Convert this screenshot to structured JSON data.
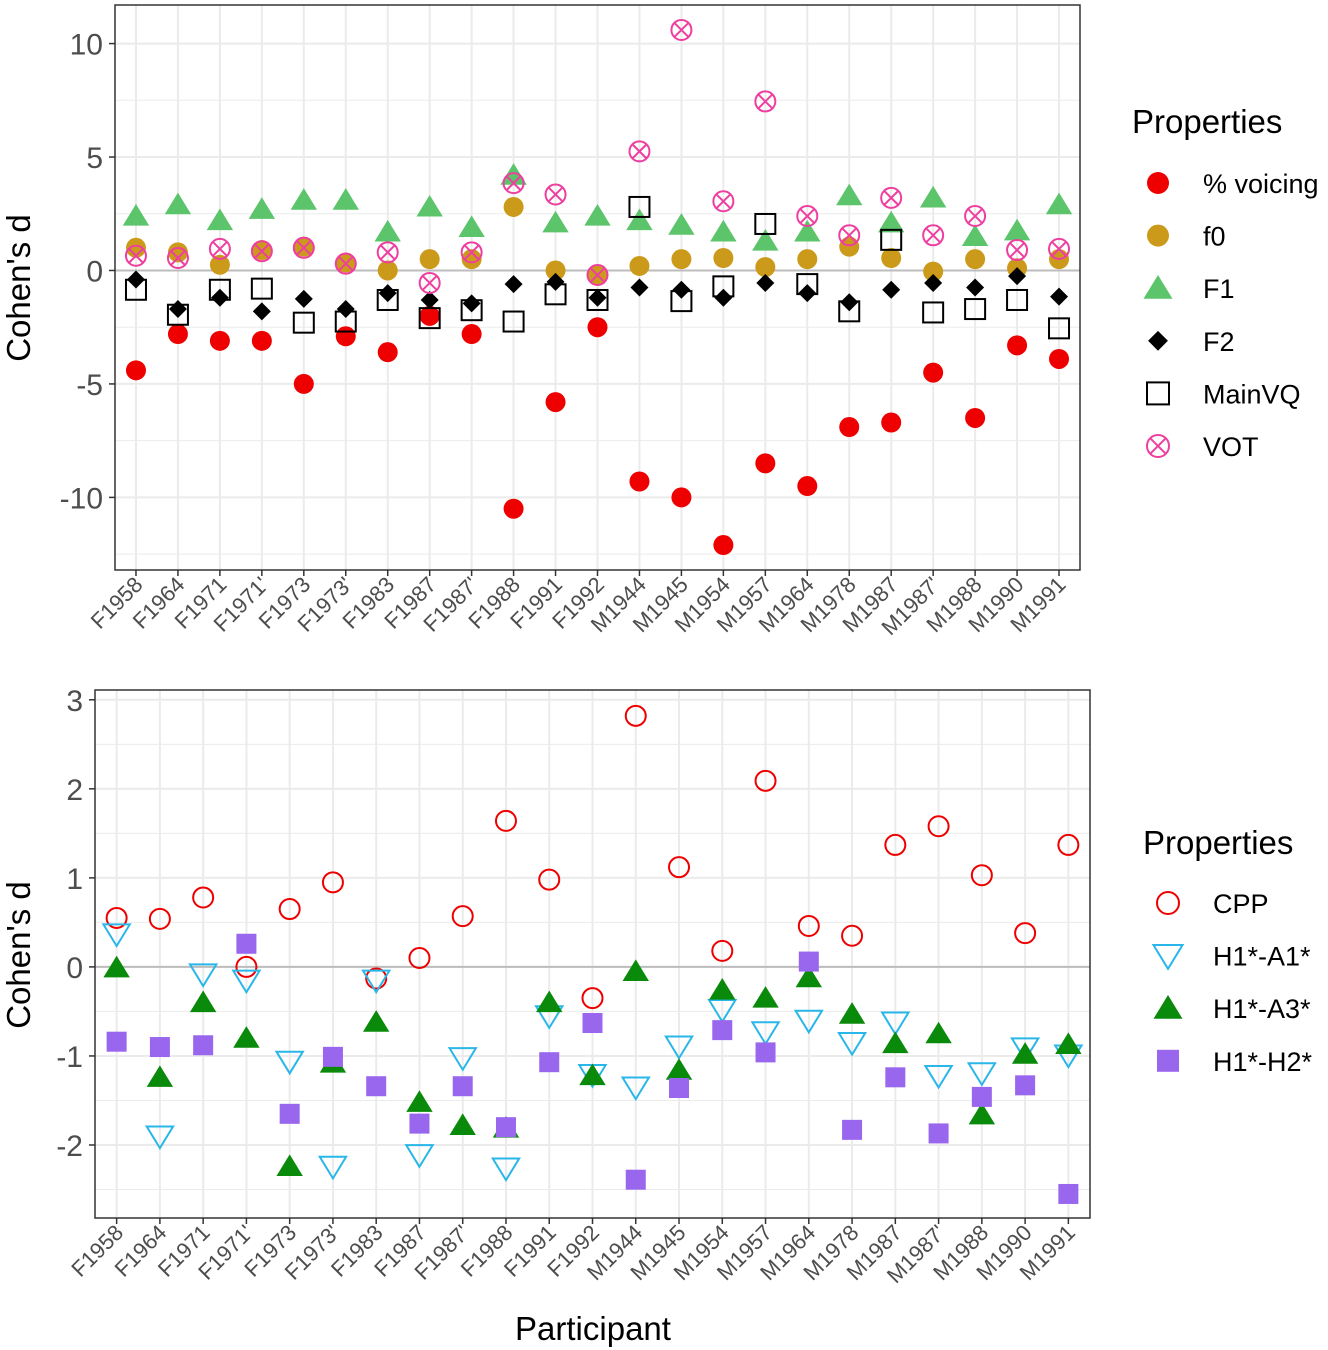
{
  "chart_data": [
    {
      "type": "scatter",
      "xlabel": "",
      "ylabel": "Cohen's d",
      "ylim": [
        -13.2,
        11.7
      ],
      "yticks": [
        -10,
        -5,
        0,
        5,
        10
      ],
      "grid": true,
      "reference_line": 0,
      "legend": {
        "title": "Properties",
        "placement": "right"
      },
      "categories": [
        "F1958",
        "F1964",
        "F1971",
        "F1971'",
        "F1973",
        "F1973'",
        "F1983",
        "F1987",
        "F1987'",
        "F1988",
        "F1991",
        "F1992",
        "M1944",
        "M1945",
        "M1954",
        "M1957",
        "M1964",
        "M1978",
        "M1987",
        "M1987'",
        "M1988",
        "M1990",
        "M1991"
      ],
      "series": [
        {
          "name": "% voicing",
          "marker": "filled-circle",
          "color": "#ee0000",
          "values": [
            -4.4,
            -2.8,
            -3.1,
            -3.1,
            -5.0,
            -2.9,
            -3.6,
            -2.0,
            -2.8,
            -10.5,
            -5.8,
            -2.5,
            -9.3,
            -10.0,
            -12.1,
            -8.5,
            -9.5,
            -6.9,
            -6.7,
            -4.5,
            -6.5,
            -3.3,
            -3.9
          ]
        },
        {
          "name": "f0",
          "marker": "filled-circle",
          "color": "#cc9a1a",
          "values": [
            1.0,
            0.8,
            0.25,
            0.9,
            1.05,
            0.35,
            0.0,
            0.5,
            0.5,
            2.8,
            0.0,
            -0.2,
            0.2,
            0.5,
            0.55,
            0.15,
            0.5,
            1.05,
            0.55,
            -0.05,
            0.5,
            0.1,
            0.5
          ]
        },
        {
          "name": "F1",
          "marker": "filled-triangle-up",
          "color": "#5cc46a",
          "values": [
            2.4,
            2.9,
            2.2,
            2.7,
            3.1,
            3.1,
            1.7,
            2.8,
            1.9,
            4.2,
            2.1,
            2.4,
            2.2,
            2.0,
            1.7,
            1.3,
            1.7,
            3.3,
            2.1,
            3.2,
            1.5,
            1.75,
            2.9
          ]
        },
        {
          "name": "F2",
          "marker": "filled-diamond",
          "color": "#000000",
          "values": [
            -0.4,
            -1.7,
            -1.2,
            -1.8,
            -1.25,
            -1.7,
            -1.0,
            -1.3,
            -1.45,
            -0.6,
            -0.5,
            -1.2,
            -0.75,
            -0.85,
            -1.2,
            -0.55,
            -1.0,
            -1.4,
            -0.85,
            -0.55,
            -0.75,
            -0.25,
            -1.15
          ]
        },
        {
          "name": "MainVQ",
          "marker": "open-square",
          "color": "#000000",
          "values": [
            -0.85,
            -1.95,
            -0.85,
            -0.8,
            -2.3,
            -2.25,
            -1.3,
            -2.1,
            -1.75,
            -2.25,
            -1.05,
            -1.3,
            2.8,
            -1.35,
            -0.7,
            2.05,
            -0.6,
            -1.8,
            1.35,
            -1.85,
            -1.7,
            -1.3,
            -2.55
          ]
        },
        {
          "name": "VOT",
          "marker": "circle-cross",
          "color": "#ee3fa0",
          "values": [
            0.65,
            0.55,
            0.95,
            0.85,
            1.0,
            0.3,
            0.8,
            -0.55,
            0.8,
            3.85,
            3.35,
            -0.2,
            5.25,
            10.6,
            3.05,
            7.45,
            2.4,
            1.55,
            3.2,
            1.55,
            2.4,
            0.9,
            0.95
          ]
        }
      ]
    },
    {
      "type": "scatter",
      "xlabel": "Participant",
      "ylabel": "Cohen's d",
      "ylim": [
        -2.82,
        3.11
      ],
      "yticks": [
        -2,
        -1,
        0,
        1,
        2,
        3
      ],
      "grid": true,
      "reference_line": 0,
      "legend": {
        "title": "Properties",
        "placement": "right"
      },
      "categories": [
        "F1958",
        "F1964",
        "F1971",
        "F1971'",
        "F1973",
        "F1973'",
        "F1983",
        "F1987",
        "F1987'",
        "F1988",
        "F1991",
        "F1992",
        "M1944",
        "M1945",
        "M1954",
        "M1957",
        "M1964",
        "M1978",
        "M1987",
        "M1987'",
        "M1988",
        "M1990",
        "M1991"
      ],
      "series": [
        {
          "name": "CPP",
          "marker": "open-circle",
          "color": "#ee0000",
          "values": [
            0.55,
            0.54,
            0.78,
            0.0,
            0.65,
            0.95,
            -0.13,
            0.1,
            0.57,
            1.64,
            0.98,
            -0.35,
            2.82,
            1.12,
            0.18,
            2.09,
            0.46,
            0.35,
            1.37,
            1.58,
            1.03,
            0.38,
            1.37
          ]
        },
        {
          "name": "H1*-A1*",
          "marker": "open-triangle-down",
          "color": "#29b6e8",
          "values": [
            0.37,
            -1.9,
            -0.08,
            -0.15,
            -1.06,
            -2.24,
            -0.15,
            -2.11,
            -1.02,
            -2.26,
            -0.55,
            -1.21,
            -1.35,
            -0.89,
            -0.48,
            -0.73,
            -0.6,
            -0.85,
            -0.62,
            -1.22,
            -1.19,
            -0.91,
            -0.99
          ]
        },
        {
          "name": "H1*-A3*",
          "marker": "filled-triangle-up",
          "color": "#0a8a0a",
          "values": [
            -0.01,
            -1.24,
            -0.4,
            -0.8,
            -2.24,
            -1.08,
            -0.62,
            -1.52,
            -1.78,
            -1.81,
            -0.4,
            -1.22,
            -0.05,
            -1.16,
            -0.26,
            -0.35,
            -0.12,
            -0.53,
            -0.86,
            -0.75,
            -1.66,
            -0.98,
            -0.87
          ]
        },
        {
          "name": "H1*-H2*",
          "marker": "filled-square",
          "color": "#9966ee",
          "values": [
            -0.84,
            -0.9,
            -0.88,
            0.26,
            -1.65,
            -1.01,
            -1.34,
            -1.76,
            -1.34,
            -1.8,
            -1.07,
            -0.63,
            -2.39,
            -1.36,
            -0.71,
            -0.96,
            0.06,
            -1.83,
            -1.24,
            -1.87,
            -1.46,
            -1.33,
            -2.55
          ]
        }
      ]
    }
  ]
}
